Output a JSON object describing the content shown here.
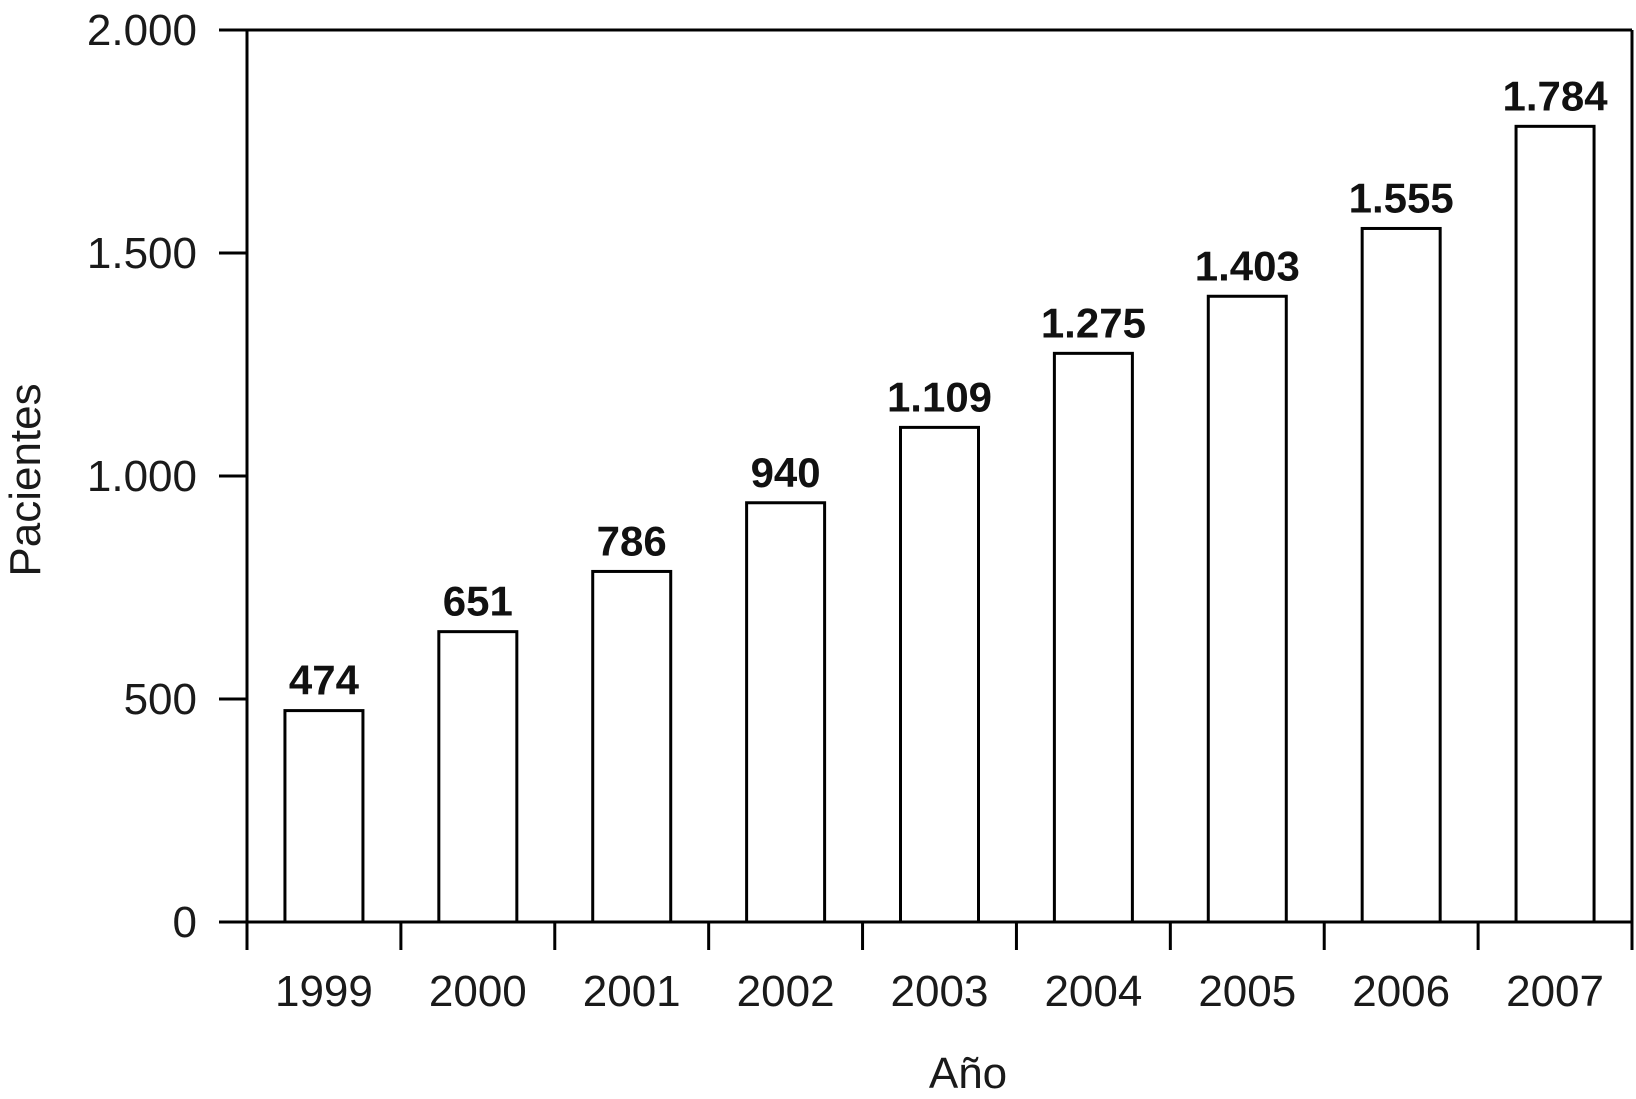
{
  "chart_data": {
    "type": "bar",
    "categories": [
      "1999",
      "2000",
      "2001",
      "2002",
      "2003",
      "2004",
      "2005",
      "2006",
      "2007"
    ],
    "values": [
      474,
      651,
      786,
      940,
      1109,
      1275,
      1403,
      1555,
      1784
    ],
    "data_labels": [
      "474",
      "651",
      "786",
      "940",
      "1.109",
      "1.275",
      "1.403",
      "1.555",
      "1.784"
    ],
    "xlabel": "Año",
    "ylabel": "Pacientes",
    "ylim": [
      0,
      2000
    ],
    "yticks": [
      0,
      500,
      1000,
      1500,
      2000
    ],
    "ytick_labels": [
      "0",
      "500",
      "1.000",
      "1.500",
      "2.000"
    ],
    "grid": false,
    "colors": {
      "bar_fill": "#ffffff",
      "bar_stroke": "#000000",
      "axis": "#000000"
    }
  }
}
